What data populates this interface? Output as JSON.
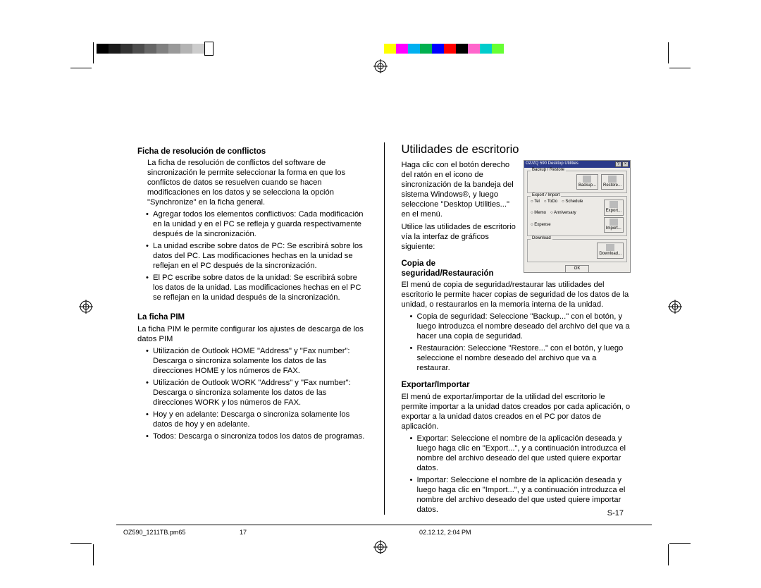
{
  "regbar_left_colors": [
    "#000000",
    "#1a1a1a",
    "#333333",
    "#4d4d4d",
    "#666666",
    "#808080",
    "#999999",
    "#b3b3b3",
    "#cccccc",
    "#ffffff"
  ],
  "regbar_right_colors": [
    "#ffff00",
    "#ff00ff",
    "#00b0f0",
    "#00b050",
    "#0000ff",
    "#ff0000",
    "#000000",
    "#ff66cc",
    "#00cccc",
    "#66ff33"
  ],
  "left": {
    "h1": "Ficha de resolución de conflictos",
    "p1": "La ficha de resolución de conflictos del software de sincronización le permite seleccionar la forma en que los conflictos de datos se resuelven cuando se hacen modificaciones en los datos y se selecciona la opción \"Synchronize\" en la ficha general.",
    "b1": "Agregar todos los elementos conflictivos: Cada modificación en la unidad y en el PC se refleja y guarda respectivamente después de la sincronización.",
    "b2": "La unidad escribe sobre datos de PC: Se escribirá sobre los datos del PC. Las modificaciones hechas en la unidad se reflejan en el PC después de la sincronización.",
    "b3": "El PC escribe sobre datos de la unidad: Se escribirá sobre los datos de la unidad. Las modificaciones hechas en el PC se reflejan en la unidad después de la sincronización.",
    "h2": "La ficha PIM",
    "p2": "La ficha PIM le permite configurar los ajustes de descarga de los datos PIM",
    "b4": "Utilización de Outlook HOME \"Address\" y \"Fax number\": Descarga o sincroniza solamente los datos de las direcciones HOME y los números de FAX.",
    "b5": "Utilización de Outlook WORK \"Address\" y \"Fax number\": Descarga o sincroniza solamente los datos de las direcciones WORK  y los números  de FAX.",
    "b6": "Hoy y en adelante: Descarga o sincroniza solamente los datos de hoy y en adelante.",
    "b7": "Todos: Descarga o sincroniza todos los datos de programas."
  },
  "right": {
    "title": "Utilidades de escritorio",
    "p1": "Haga clic con el botón derecho del ratón en el icono de sincronización de la bandeja del sistema Windows®, y luego seleccione \"Desktop Utilities...\" en el menú.",
    "p2": "Utilice las utilidades de escritorio vía la interfaz de gráficos siguiente:",
    "h2": "Copia de seguridad/Restauración",
    "p3": "El menú de copia de seguridad/restaurar las utilidades del escritorio le permite hacer copias de seguridad de los datos de la unidad, o restaurarlos en la memoria interna de la unidad.",
    "b1": "Copia de seguridad: Seleccione \"Backup...\" con el botón, y luego introduzca el nombre deseado del archivo del que va a hacer una copia de seguridad.",
    "b2": "Restauración: Seleccione \"Restore...\" con el botón, y luego seleccione el nombre deseado del archivo que va a restaurar.",
    "h3": "Exportar/Importar",
    "p4": "El menú de exportar/importar de la utilidad del escritorio le permite importar a la unidad datos creados por cada aplicación, o exportar a la unidad datos creados en el PC por datos de aplicación.",
    "b3": "Exportar: Seleccione el nombre de la aplicación deseada y luego haga clic en \"Export...\", y a continuación introduzca el nombre del archivo deseado del que usted quiere exportar datos.",
    "b4": "Importar: Seleccione el nombre de la aplicación deseada y luego haga clic en \"Import...\", y a continuación introduzca el nombre del archivo deseado del que usted quiere importar datos."
  },
  "window": {
    "title": "OZ/ZQ 590 Desktop Utilities",
    "group1": "Backup / Restore",
    "btn_backup": "Backup...",
    "btn_restore": "Restore...",
    "group2": "Export / Import",
    "app_tel": "Tel",
    "app_schedule": "Schedule",
    "app_ann": "Anniversary",
    "app_todo": "ToDo",
    "app_memo": "Memo",
    "app_expense": "Expense",
    "btn_export": "Export...",
    "btn_import": "Import...",
    "group3": "Download",
    "btn_download": "Download...",
    "ok": "OK"
  },
  "page_number": "S-17",
  "footer": {
    "filename": "OZ590_1211TB.pm65",
    "page": "17",
    "datetime": "02.12.12, 2:04 PM"
  }
}
